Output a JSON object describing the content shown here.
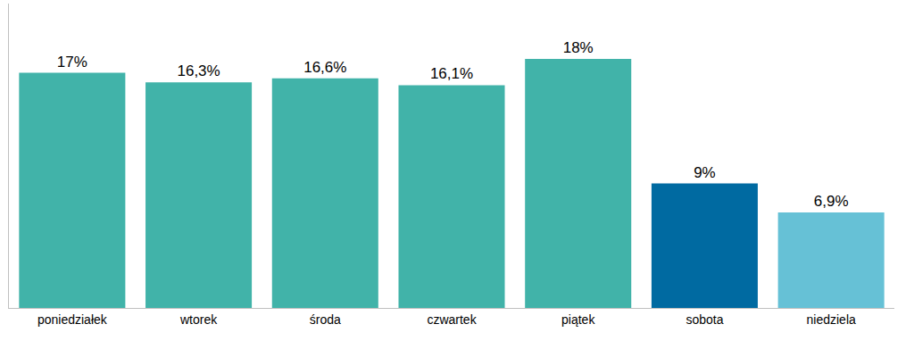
{
  "chart_data": {
    "type": "bar",
    "categories": [
      "poniedziałek",
      "wtorek",
      "środa",
      "czwartek",
      "piątek",
      "sobota",
      "niedziela"
    ],
    "values": [
      17,
      16.3,
      16.6,
      16.1,
      18,
      9,
      6.9
    ],
    "value_labels": [
      "17%",
      "16,3%",
      "16,6%",
      "16,1%",
      "18%",
      "9%",
      "6,9%"
    ],
    "colors": [
      "#41b3a9",
      "#41b3a9",
      "#41b3a9",
      "#41b3a9",
      "#41b3a9",
      "#006aa1",
      "#66c1d6"
    ],
    "ylim": [
      0,
      22
    ],
    "data_labels": true,
    "tick_labels": "x",
    "grid": false
  }
}
